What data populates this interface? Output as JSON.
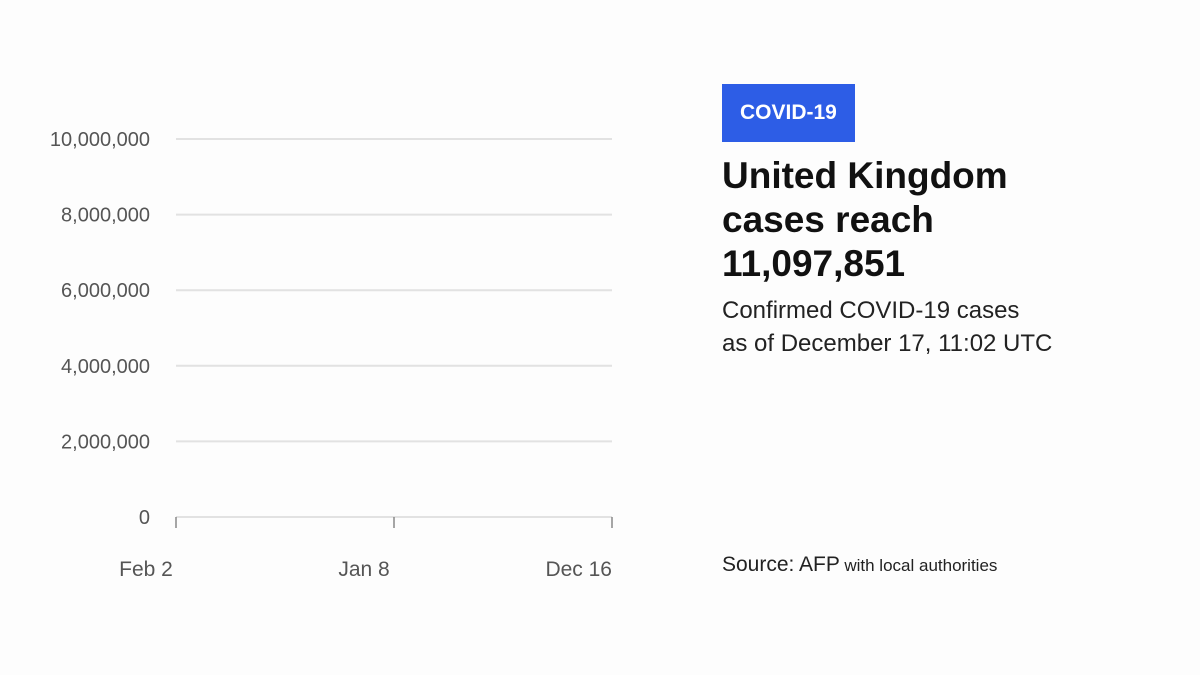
{
  "header": {
    "badge": "COVID-19",
    "title": "United Kingdom cases reach 11,097,851",
    "subtitle_line1": "Confirmed COVID-19 cases",
    "subtitle_line2": "as of December 17, 11:02 UTC"
  },
  "source": {
    "label": "Source: AFP",
    "rest": "with local authorities"
  },
  "colors": {
    "badge_bg": "#2d5de6",
    "gridline": "#e2e2e2",
    "text": "#111111"
  },
  "chart_data": {
    "type": "line",
    "title": "United Kingdom cases reach 11,097,851",
    "xlabel": "",
    "ylabel": "",
    "ylim": [
      0,
      10000000
    ],
    "y_ticks": [
      0,
      2000000,
      4000000,
      6000000,
      8000000,
      10000000
    ],
    "y_tick_labels": [
      "0",
      "2,000,000",
      "4,000,000",
      "6,000,000",
      "8,000,000",
      "10,000,000"
    ],
    "x_tick_labels": [
      "Feb 2",
      "Jan 8",
      "Dec 16"
    ],
    "grid": true,
    "series": []
  }
}
